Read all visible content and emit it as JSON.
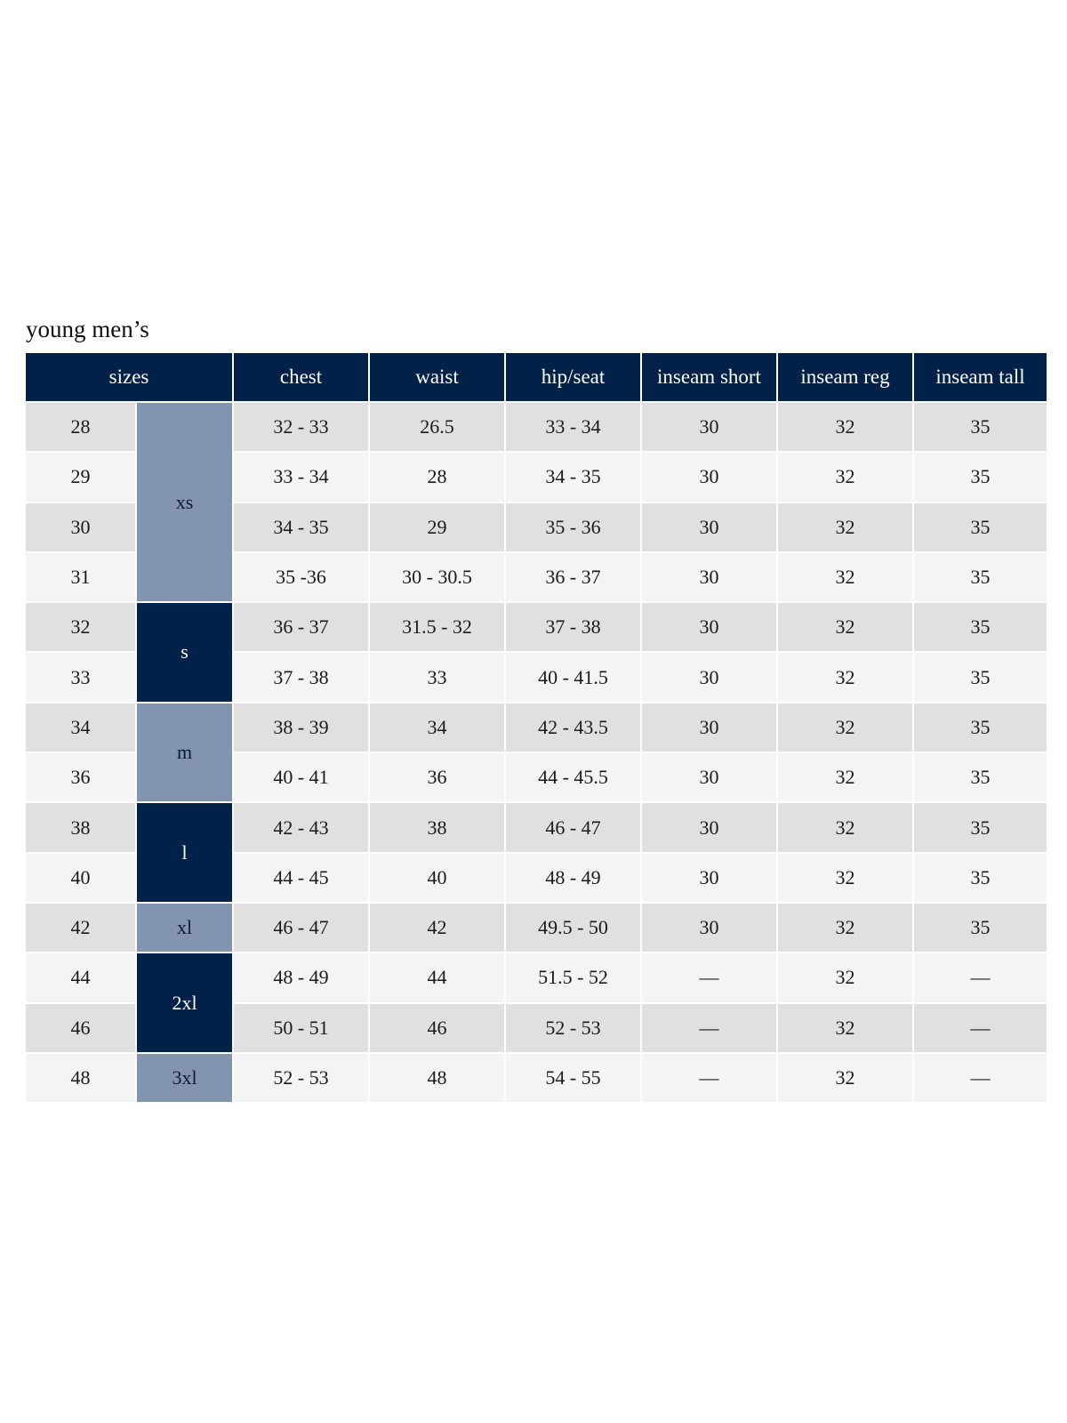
{
  "title": "young men’s",
  "headers": [
    "sizes",
    "chest",
    "waist",
    "hip/seat",
    "inseam short",
    "inseam reg",
    "inseam tall"
  ],
  "size_groups": [
    {
      "label": "xs",
      "rows": 4,
      "shade": "light"
    },
    {
      "label": "s",
      "rows": 2,
      "shade": "dark"
    },
    {
      "label": "m",
      "rows": 2,
      "shade": "light"
    },
    {
      "label": "l",
      "rows": 2,
      "shade": "dark"
    },
    {
      "label": "xl",
      "rows": 1,
      "shade": "light"
    },
    {
      "label": "2xl",
      "rows": 2,
      "shade": "dark"
    },
    {
      "label": "3xl",
      "rows": 1,
      "shade": "light"
    }
  ],
  "rows": [
    [
      "28",
      "32 - 33",
      "26.5",
      "33 - 34",
      "30",
      "32",
      "35"
    ],
    [
      "29",
      "33 - 34",
      "28",
      "34 - 35",
      "30",
      "32",
      "35"
    ],
    [
      "30",
      "34 - 35",
      "29",
      "35 - 36",
      "30",
      "32",
      "35"
    ],
    [
      "31",
      "35 -36",
      "30 - 30.5",
      "36 - 37",
      "30",
      "32",
      "35"
    ],
    [
      "32",
      "36 - 37",
      "31.5 - 32",
      "37 - 38",
      "30",
      "32",
      "35"
    ],
    [
      "33",
      "37 - 38",
      "33",
      "40 - 41.5",
      "30",
      "32",
      "35"
    ],
    [
      "34",
      "38 - 39",
      "34",
      "42 - 43.5",
      "30",
      "32",
      "35"
    ],
    [
      "36",
      "40 - 41",
      "36",
      "44 - 45.5",
      "30",
      "32",
      "35"
    ],
    [
      "38",
      "42 - 43",
      "38",
      "46 - 47",
      "30",
      "32",
      "35"
    ],
    [
      "40",
      "44 - 45",
      "40",
      "48 - 49",
      "30",
      "32",
      "35"
    ],
    [
      "42",
      "46 - 47",
      "42",
      "49.5 - 50",
      "30",
      "32",
      "35"
    ],
    [
      "44",
      "48 - 49",
      "44",
      "51.5 - 52",
      "—",
      "32",
      "—"
    ],
    [
      "46",
      "50 - 51",
      "46",
      "52 - 53",
      "—",
      "32",
      "—"
    ],
    [
      "48",
      "52 - 53",
      "48",
      "54 - 55",
      "—",
      "32",
      "—"
    ]
  ],
  "colors": {
    "header": "#012149",
    "size_light": "#8294b0",
    "size_dark": "#012149",
    "row_dark": "#e0e0e0",
    "row_light": "#f4f4f4"
  }
}
